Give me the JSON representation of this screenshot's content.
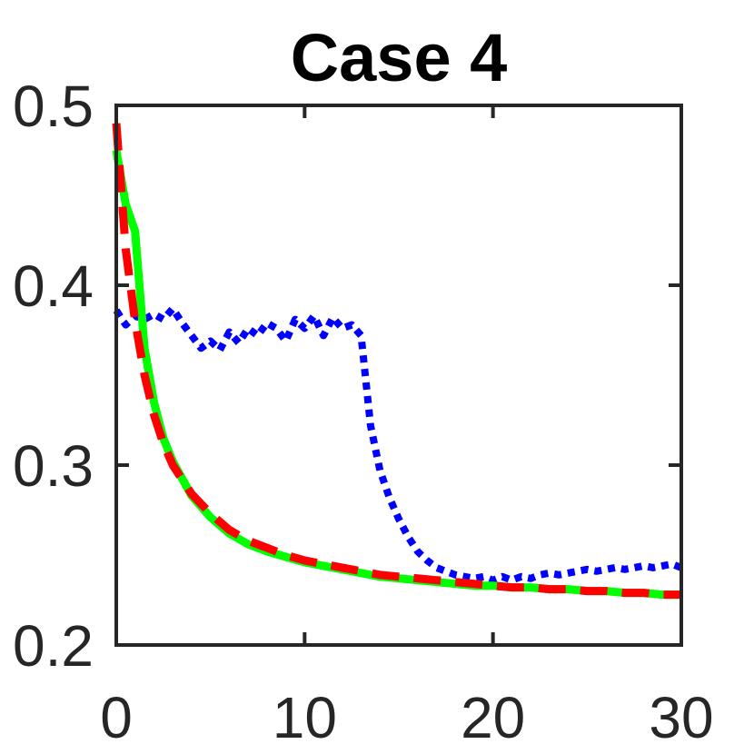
{
  "chart_data": {
    "type": "line",
    "title": "Case 4",
    "xlabel": "",
    "ylabel": "",
    "xlim": [
      0,
      30
    ],
    "ylim": [
      0.2,
      0.5
    ],
    "xticks": [
      0,
      10,
      20,
      30
    ],
    "xtick_labels": [
      "0",
      "10",
      "20",
      "30"
    ],
    "yticks": [
      0.2,
      0.3,
      0.4,
      0.5
    ],
    "ytick_labels": [
      "0.2",
      "0.3",
      "0.4",
      "0.5"
    ],
    "grid": false,
    "series": [
      {
        "style": "dotted",
        "color": "#0000ff",
        "x": [
          0,
          0.5,
          1,
          1.5,
          2,
          2.5,
          3,
          3.5,
          4,
          4.5,
          5,
          5.5,
          6,
          6.5,
          7,
          7.5,
          8,
          8.5,
          9,
          9.5,
          10,
          10.5,
          11,
          11.5,
          12,
          12.5,
          13,
          13.5,
          14,
          14.5,
          15,
          15.5,
          16,
          16.5,
          17,
          17.5,
          18,
          18.5,
          19,
          19.5,
          20,
          20.5,
          21,
          21.5,
          22,
          22.5,
          23,
          23.5,
          24,
          24.5,
          25,
          25.5,
          26,
          26.5,
          27,
          27.5,
          28,
          28.5,
          29,
          29.5,
          30
        ],
        "y": [
          0.386,
          0.378,
          0.383,
          0.381,
          0.384,
          0.381,
          0.387,
          0.379,
          0.372,
          0.365,
          0.369,
          0.364,
          0.374,
          0.368,
          0.376,
          0.372,
          0.379,
          0.376,
          0.369,
          0.381,
          0.376,
          0.383,
          0.372,
          0.382,
          0.376,
          0.378,
          0.372,
          0.322,
          0.297,
          0.282,
          0.27,
          0.26,
          0.252,
          0.247,
          0.243,
          0.241,
          0.239,
          0.238,
          0.237,
          0.238,
          0.236,
          0.238,
          0.236,
          0.238,
          0.237,
          0.239,
          0.24,
          0.239,
          0.24,
          0.241,
          0.242,
          0.241,
          0.242,
          0.243,
          0.242,
          0.243,
          0.244,
          0.243,
          0.244,
          0.245,
          0.243
        ]
      },
      {
        "style": "solid",
        "color": "#00ff00",
        "x": [
          0,
          0.5,
          1,
          1.5,
          2,
          2.5,
          3,
          4,
          5,
          6,
          7,
          8,
          9,
          10,
          11,
          12,
          13,
          14,
          15,
          16,
          17,
          18,
          19,
          20,
          21,
          22,
          23,
          24,
          25,
          26,
          27,
          28,
          29,
          30
        ],
        "y": [
          0.475,
          0.445,
          0.43,
          0.365,
          0.335,
          0.315,
          0.302,
          0.283,
          0.271,
          0.262,
          0.256,
          0.252,
          0.249,
          0.246,
          0.244,
          0.242,
          0.24,
          0.238,
          0.237,
          0.236,
          0.235,
          0.234,
          0.233,
          0.233,
          0.232,
          0.232,
          0.231,
          0.231,
          0.23,
          0.23,
          0.229,
          0.229,
          0.228,
          0.228
        ]
      },
      {
        "style": "dashed",
        "color": "#ff0000",
        "x": [
          0,
          0.25,
          0.5,
          1,
          1.5,
          2,
          2.5,
          3,
          4,
          5,
          6,
          7,
          8,
          9,
          10,
          11,
          12,
          13,
          14,
          15,
          16,
          17,
          18,
          19,
          20,
          21,
          22,
          23,
          24,
          25,
          26,
          27,
          28,
          29,
          30
        ],
        "y": [
          0.49,
          0.455,
          0.42,
          0.38,
          0.35,
          0.328,
          0.312,
          0.3,
          0.284,
          0.273,
          0.264,
          0.258,
          0.254,
          0.25,
          0.247,
          0.245,
          0.243,
          0.241,
          0.239,
          0.238,
          0.237,
          0.236,
          0.235,
          0.234,
          0.233,
          0.232,
          0.232,
          0.231,
          0.231,
          0.23,
          0.23,
          0.229,
          0.229,
          0.228,
          0.228
        ]
      }
    ]
  }
}
